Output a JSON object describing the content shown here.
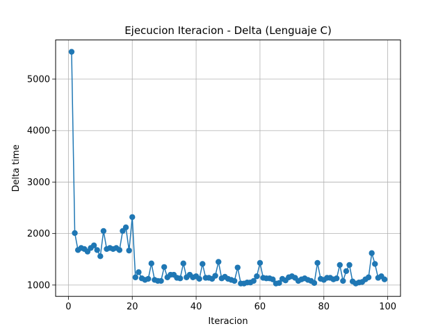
{
  "chart_data": {
    "type": "line",
    "title": "Ejecucion Iteracion - Delta  (Lenguaje C)",
    "xlabel": "Iteracion",
    "ylabel": "Delta time",
    "xlim": [
      -4,
      104
    ],
    "ylim": [
      780,
      5760
    ],
    "xticks": [
      0,
      20,
      40,
      60,
      80,
      100
    ],
    "yticks": [
      1000,
      2000,
      3000,
      4000,
      5000
    ],
    "grid": true,
    "color": "#1f77b4",
    "series": [
      {
        "x": [
          1,
          2,
          3,
          4,
          5,
          6,
          7,
          8,
          9,
          10,
          11,
          12,
          13,
          14,
          15,
          16,
          17,
          18,
          19,
          20,
          21,
          22,
          23,
          24,
          25,
          26,
          27,
          28,
          29,
          30,
          31,
          32,
          33,
          34,
          35,
          36,
          37,
          38,
          39,
          40,
          41,
          42,
          43,
          44,
          45,
          46,
          47,
          48,
          49,
          50,
          51,
          52,
          53,
          54,
          55,
          56,
          57,
          58,
          59,
          60,
          61,
          62,
          63,
          64,
          65,
          66,
          67,
          68,
          69,
          70,
          71,
          72,
          73,
          74,
          75,
          76,
          77,
          78,
          79,
          80,
          81,
          82,
          83,
          84,
          85,
          86,
          87,
          88,
          89,
          90,
          91,
          92,
          93,
          94,
          95,
          96,
          97,
          98,
          99
        ],
        "values": [
          5530,
          2010,
          1680,
          1720,
          1700,
          1650,
          1720,
          1770,
          1680,
          1560,
          2050,
          1700,
          1720,
          1700,
          1720,
          1680,
          2050,
          2120,
          1670,
          2320,
          1150,
          1250,
          1130,
          1100,
          1120,
          1420,
          1100,
          1080,
          1080,
          1350,
          1150,
          1200,
          1200,
          1140,
          1130,
          1420,
          1150,
          1200,
          1150,
          1170,
          1120,
          1410,
          1140,
          1140,
          1120,
          1180,
          1450,
          1130,
          1160,
          1120,
          1100,
          1080,
          1340,
          1030,
          1030,
          1050,
          1050,
          1080,
          1170,
          1430,
          1140,
          1130,
          1130,
          1110,
          1030,
          1040,
          1120,
          1090,
          1150,
          1170,
          1140,
          1080,
          1110,
          1130,
          1100,
          1080,
          1040,
          1430,
          1120,
          1100,
          1140,
          1140,
          1110,
          1130,
          1390,
          1080,
          1270,
          1390,
          1070,
          1030,
          1050,
          1060,
          1110,
          1150,
          1620,
          1410,
          1140,
          1170,
          1110
        ]
      }
    ]
  }
}
